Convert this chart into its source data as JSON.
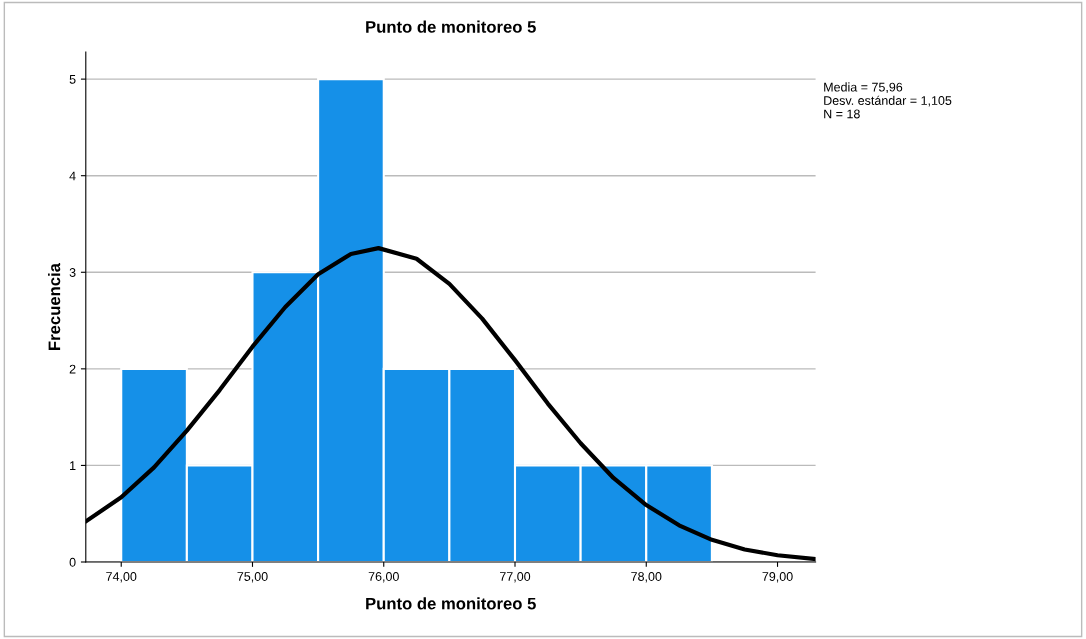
{
  "chart_data": {
    "type": "histogram",
    "title": "Punto de monitoreo 5",
    "xlabel": "Punto de monitoreo 5",
    "ylabel": "Frecuencia",
    "annotations": [
      "Media = 75,96",
      "Desv. estándar = 1,105",
      "N = 18"
    ],
    "series": [
      {
        "bins": [
          74.0,
          74.5,
          75.0,
          75.5,
          76.0,
          76.5,
          77.0,
          77.5,
          78.0,
          78.5
        ],
        "values": [
          2,
          1,
          3,
          5,
          2,
          2,
          1,
          1,
          1
        ],
        "color": "#1590e8"
      },
      {
        "type": "line",
        "color": "#000000",
        "x": [
          73.73,
          74.0,
          74.25,
          74.5,
          74.75,
          75.0,
          75.25,
          75.5,
          75.75,
          75.96,
          76.25,
          76.5,
          76.75,
          77.0,
          77.25,
          77.5,
          77.75,
          78.0,
          78.25,
          78.5,
          78.75,
          79.0,
          79.29
        ],
        "values": [
          0.42,
          0.67,
          0.98,
          1.36,
          1.78,
          2.23,
          2.64,
          2.98,
          3.19,
          3.25,
          3.14,
          2.88,
          2.52,
          2.09,
          1.64,
          1.23,
          0.87,
          0.59,
          0.38,
          0.23,
          0.13,
          0.07,
          0.03
        ]
      }
    ],
    "xlim": [
      73.73,
      79.29
    ],
    "xticks": [
      {
        "value": 74,
        "label": "74,00"
      },
      {
        "value": 75,
        "label": "75,00"
      },
      {
        "value": 76,
        "label": "76,00"
      },
      {
        "value": 77,
        "label": "77,00"
      },
      {
        "value": 78,
        "label": "78,00"
      },
      {
        "value": 79,
        "label": "79,00"
      }
    ],
    "ylim": [
      0,
      5.28
    ],
    "yticks": [
      0,
      1,
      2,
      3,
      4,
      5
    ],
    "grid": "y",
    "legend": false
  }
}
